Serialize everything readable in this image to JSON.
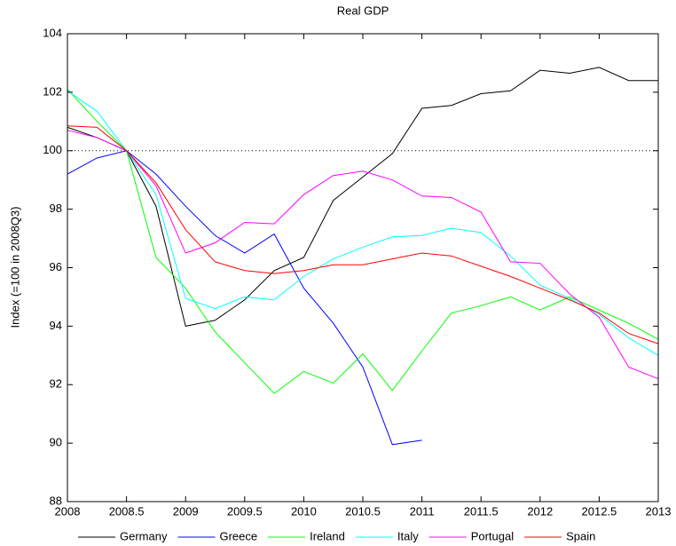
{
  "chart_data": {
    "type": "line",
    "title": "Real GDP",
    "y_label": "Index (=100 in 2008Q3)",
    "x": [
      2008,
      2008.25,
      2008.5,
      2008.75,
      2009,
      2009.25,
      2009.5,
      2009.75,
      2010,
      2010.25,
      2010.5,
      2010.75,
      2011,
      2011.25,
      2011.5,
      2011.75,
      2012,
      2012.25,
      2012.5,
      2012.75,
      2013
    ],
    "xlim": [
      2008,
      2013
    ],
    "xticks": [
      2008,
      2008.5,
      2009,
      2009.5,
      2010,
      2010.5,
      2011,
      2011.5,
      2012,
      2012.5,
      2013
    ],
    "ylim": [
      88,
      104
    ],
    "yticks": [
      88,
      90,
      92,
      94,
      96,
      98,
      100,
      102,
      104
    ],
    "reference_line": 100,
    "legend": "bottom",
    "series": [
      {
        "name": "Germany",
        "color": "#000000",
        "values": [
          100.8,
          100.45,
          100,
          98.1,
          94.0,
          94.2,
          94.9,
          95.9,
          96.35,
          98.3,
          99.1,
          99.9,
          101.45,
          101.55,
          101.95,
          102.05,
          102.75,
          102.65,
          102.85,
          102.4,
          102.4
        ]
      },
      {
        "name": "Greece",
        "color": "#0000ff",
        "values": [
          99.2,
          99.75,
          100,
          99.2,
          98.1,
          97.1,
          96.5,
          97.15,
          95.3,
          94.1,
          92.6,
          89.95,
          90.1,
          null,
          null,
          null,
          null,
          null,
          null,
          null,
          null
        ]
      },
      {
        "name": "Ireland",
        "color": "#00ff00",
        "values": [
          102.1,
          101.0,
          100,
          96.35,
          95.3,
          93.8,
          92.75,
          91.7,
          92.45,
          92.05,
          93.05,
          91.8,
          93.15,
          94.45,
          94.7,
          95.0,
          94.55,
          95.0,
          94.55,
          94.1,
          93.55
        ]
      },
      {
        "name": "Italy",
        "color": "#00ffff",
        "values": [
          102.05,
          101.35,
          100,
          98.5,
          94.95,
          94.6,
          95.0,
          94.9,
          95.7,
          96.3,
          96.7,
          97.05,
          97.1,
          97.35,
          97.2,
          96.4,
          95.4,
          94.95,
          94.4,
          93.6,
          93.0
        ]
      },
      {
        "name": "Portugal",
        "color": "#ff00ff",
        "values": [
          100.7,
          100.45,
          100,
          98.8,
          96.5,
          96.85,
          97.55,
          97.5,
          98.5,
          99.15,
          99.3,
          99.0,
          98.45,
          98.4,
          97.9,
          96.2,
          96.15,
          95.1,
          94.3,
          92.6,
          92.2
        ]
      },
      {
        "name": "Spain",
        "color": "#ff0000",
        "values": [
          100.85,
          100.8,
          100,
          98.9,
          97.3,
          96.2,
          95.9,
          95.8,
          95.9,
          96.1,
          96.1,
          96.3,
          96.5,
          96.4,
          96.05,
          95.7,
          95.3,
          94.9,
          94.45,
          93.75,
          93.4
        ]
      }
    ]
  }
}
